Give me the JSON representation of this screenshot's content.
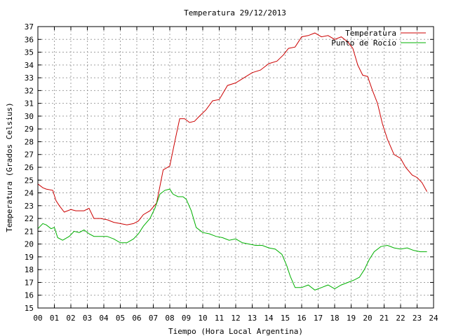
{
  "chart_data": {
    "type": "line",
    "title": "Temperatura 29/12/2013",
    "xlabel": "Tiempo (Hora Local Argentina)",
    "ylabel": "Temperatura (Grados Celsius)",
    "xlim": [
      0,
      24
    ],
    "ylim": [
      15,
      37
    ],
    "x_ticks": [
      "00",
      "01",
      "02",
      "03",
      "04",
      "05",
      "06",
      "07",
      "08",
      "09",
      "10",
      "11",
      "12",
      "13",
      "14",
      "15",
      "16",
      "17",
      "18",
      "19",
      "20",
      "21",
      "22",
      "23",
      "24"
    ],
    "y_ticks": [
      "15",
      "16",
      "17",
      "18",
      "19",
      "20",
      "21",
      "22",
      "23",
      "24",
      "25",
      "26",
      "27",
      "28",
      "29",
      "30",
      "31",
      "32",
      "33",
      "34",
      "35",
      "36",
      "37"
    ],
    "grid": true,
    "legend_position": "top-right",
    "colors": {
      "temperatura": "#cc0000",
      "rocio": "#00b000"
    },
    "series": [
      {
        "name": "Temperatura",
        "x": [
          0,
          0.3,
          0.5,
          0.9,
          1.1,
          1.3,
          1.6,
          2.0,
          2.3,
          2.8,
          3.1,
          3.4,
          3.8,
          4.2,
          4.6,
          5.0,
          5.4,
          5.8,
          6.1,
          6.4,
          6.8,
          7.2,
          7.6,
          8.0,
          8.3,
          8.6,
          8.9,
          9.2,
          9.5,
          9.8,
          10.2,
          10.6,
          11.0,
          11.5,
          12.0,
          12.5,
          13.0,
          13.5,
          14.0,
          14.5,
          14.9,
          15.2,
          15.6,
          16.0,
          16.4,
          16.8,
          17.2,
          17.6,
          18.0,
          18.4,
          18.8,
          19.1,
          19.4,
          19.7,
          20.0,
          20.3,
          20.6,
          20.9,
          21.2,
          21.6,
          22.0,
          22.3,
          22.7,
          23.0,
          23.3,
          23.6
        ],
        "y": [
          24.7,
          24.4,
          24.3,
          24.2,
          23.4,
          23.0,
          22.5,
          22.7,
          22.6,
          22.6,
          22.8,
          22.0,
          22.0,
          21.9,
          21.7,
          21.6,
          21.5,
          21.6,
          21.8,
          22.3,
          22.6,
          23.2,
          25.8,
          26.1,
          28.0,
          29.8,
          29.8,
          29.5,
          29.6,
          30.0,
          30.5,
          31.2,
          31.3,
          32.4,
          32.6,
          33.0,
          33.4,
          33.6,
          34.1,
          34.3,
          34.8,
          35.3,
          35.4,
          36.2,
          36.3,
          36.5,
          36.2,
          36.3,
          36.0,
          36.2,
          35.8,
          35.3,
          34.0,
          33.2,
          33.1,
          32.0,
          31.0,
          29.4,
          28.2,
          27.0,
          26.7,
          26.0,
          25.4,
          25.2,
          24.8,
          24.1
        ]
      },
      {
        "name": "Punto de Rocío",
        "x": [
          0,
          0.3,
          0.5,
          0.8,
          1.0,
          1.2,
          1.5,
          1.9,
          2.2,
          2.5,
          2.8,
          3.1,
          3.4,
          3.8,
          4.2,
          4.6,
          5.0,
          5.4,
          5.8,
          6.1,
          6.4,
          6.8,
          7.1,
          7.4,
          7.7,
          8.0,
          8.2,
          8.5,
          8.8,
          9.0,
          9.3,
          9.6,
          10.0,
          10.4,
          10.8,
          11.2,
          11.6,
          12.0,
          12.4,
          12.8,
          13.2,
          13.6,
          14.0,
          14.4,
          14.8,
          15.1,
          15.3,
          15.6,
          16.0,
          16.4,
          16.8,
          17.2,
          17.6,
          18.0,
          18.4,
          18.8,
          19.2,
          19.5,
          19.8,
          20.1,
          20.4,
          20.8,
          21.2,
          21.6,
          22.0,
          22.4,
          22.8,
          23.2,
          23.6
        ],
        "y": [
          21.2,
          21.6,
          21.5,
          21.2,
          21.3,
          20.5,
          20.3,
          20.6,
          21.0,
          20.9,
          21.1,
          20.8,
          20.6,
          20.6,
          20.6,
          20.4,
          20.1,
          20.1,
          20.4,
          20.8,
          21.4,
          22.0,
          22.8,
          23.9,
          24.2,
          24.3,
          23.9,
          23.7,
          23.7,
          23.5,
          22.6,
          21.3,
          20.9,
          20.8,
          20.6,
          20.5,
          20.3,
          20.4,
          20.1,
          20.0,
          19.9,
          19.9,
          19.7,
          19.6,
          19.2,
          18.3,
          17.5,
          16.6,
          16.6,
          16.8,
          16.4,
          16.6,
          16.8,
          16.5,
          16.8,
          17.0,
          17.2,
          17.4,
          18.0,
          18.8,
          19.4,
          19.8,
          19.9,
          19.7,
          19.6,
          19.7,
          19.5,
          19.4,
          19.4
        ]
      }
    ]
  }
}
